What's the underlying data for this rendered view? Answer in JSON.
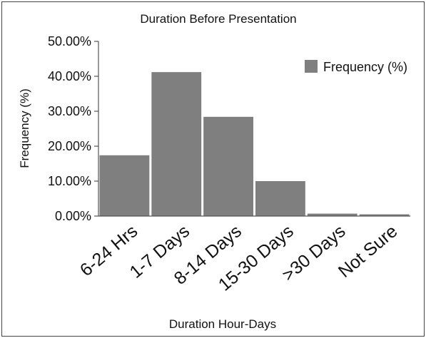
{
  "chart_data": {
    "type": "bar",
    "title": "Duration Before Presentation",
    "xlabel": "Duration Hour-Days",
    "ylabel": "Frequency (%)",
    "categories": [
      "6-24 Hrs",
      "1-7 Days",
      "8-14 Days",
      "15-30 Days",
      ">30 Days",
      "Not Sure"
    ],
    "series": [
      {
        "name": "Frequency (%)",
        "values": [
          17.4,
          41.2,
          28.4,
          10.0,
          0.7,
          0.5
        ]
      }
    ],
    "ylim": [
      0,
      50
    ],
    "yticks": [
      "0.00%",
      "10.00%",
      "20.00%",
      "30.00%",
      "40.00%",
      "50.00%"
    ],
    "grid": false,
    "legend_position": "top-right",
    "colors": {
      "bar": "#7f7f7f",
      "axis": "#555555"
    }
  }
}
